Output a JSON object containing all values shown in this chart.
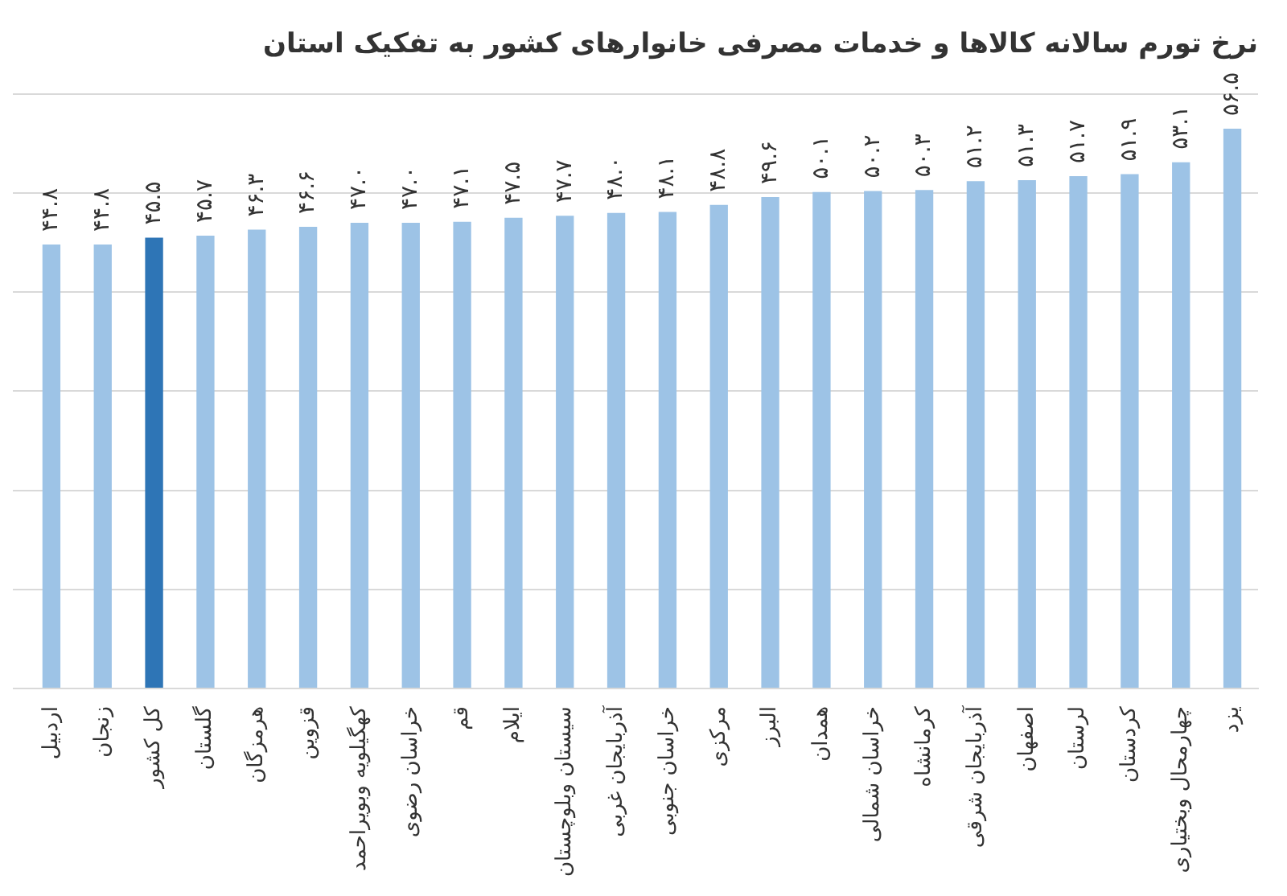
{
  "chart_data": {
    "type": "bar",
    "title": "نرخ تورم سالانه کالاها و خدمات مصرفی خانوارهای کشور به تفکیک استان",
    "categories": [
      "اردبیل",
      "زنجان",
      "کل کشور",
      "گلستان",
      "هرمزگان",
      "قزوین",
      "کهگیلویه وبویراحمد",
      "خراسان رضوی",
      "قم",
      "ایلام",
      "سیستان وبلوچستان",
      "آذربایجان غربی",
      "خراسان جنوبی",
      "مرکزی",
      "البرز",
      "همدان",
      "خراسان شمالی",
      "کرمانشاه",
      "آذربایجان شرقی",
      "اصفهان",
      "لرستان",
      "کردستان",
      "چهارمحال وبختیاری",
      "یزد"
    ],
    "values": [
      44.8,
      44.8,
      45.5,
      45.7,
      46.3,
      46.6,
      47.0,
      47.0,
      47.1,
      47.5,
      47.7,
      48.0,
      48.1,
      48.8,
      49.6,
      50.1,
      50.2,
      50.3,
      51.2,
      51.3,
      51.7,
      51.9,
      53.1,
      56.5
    ],
    "value_labels": [
      "۴۴.۸",
      "۴۴.۸",
      "۴۵.۵",
      "۴۵.۷",
      "۴۶.۳",
      "۴۶.۶",
      "۴۷.۰",
      "۴۷.۰",
      "۴۷.۱",
      "۴۷.۵",
      "۴۷.۷",
      "۴۸.۰",
      "۴۸.۱",
      "۴۸.۸",
      "۴۹.۶",
      "۵۰.۱",
      "۵۰.۲",
      "۵۰.۳",
      "۵۱.۲",
      "۵۱.۳",
      "۵۱.۷",
      "۵۱.۹",
      "۵۳.۱",
      "۵۶.۵"
    ],
    "colors": [
      "#9dc3e6",
      "#9dc3e6",
      "#2e75b6",
      "#9dc3e6",
      "#9dc3e6",
      "#9dc3e6",
      "#9dc3e6",
      "#9dc3e6",
      "#9dc3e6",
      "#9dc3e6",
      "#9dc3e6",
      "#9dc3e6",
      "#9dc3e6",
      "#9dc3e6",
      "#9dc3e6",
      "#9dc3e6",
      "#9dc3e6",
      "#9dc3e6",
      "#9dc3e6",
      "#9dc3e6",
      "#9dc3e6",
      "#9dc3e6",
      "#9dc3e6",
      "#9dc3e6"
    ],
    "ylim": [
      0,
      60
    ],
    "yticks": [
      {
        "value": 0,
        "label": null
      },
      {
        "value": 10,
        "label": null
      },
      {
        "value": 20,
        "label": null
      },
      {
        "value": 30,
        "label": null
      },
      {
        "value": 40,
        "label": null
      },
      {
        "value": 50,
        "label": null
      },
      {
        "value": 60,
        "label": null
      }
    ],
    "tick_labels": "x",
    "grid": "y",
    "legend": false
  }
}
